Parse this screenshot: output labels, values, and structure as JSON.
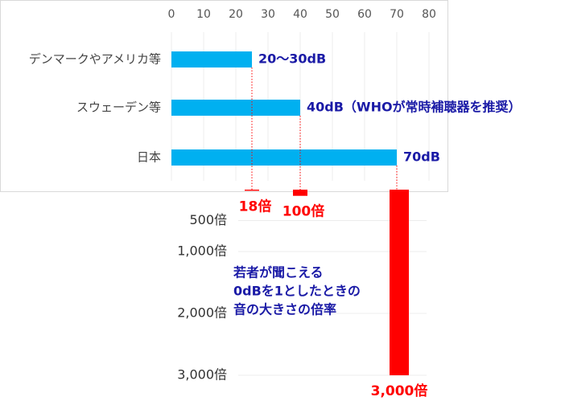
{
  "chart_data": [
    {
      "type": "bar",
      "orientation": "horizontal",
      "categories": [
        "デンマークやアメリカ等",
        "スウェーデン等",
        "日本"
      ],
      "values": [
        25,
        40,
        70
      ],
      "value_labels": [
        "20～30dB",
        "40dB（WHOが常時補聴器を推奨）",
        "70dB"
      ],
      "color": "#00b0f0",
      "label_color": "#1a1aa6",
      "xlim": [
        0,
        80
      ],
      "xticks": [
        0,
        10,
        20,
        30,
        40,
        50,
        60,
        70,
        80
      ],
      "grid": true
    },
    {
      "type": "bar",
      "orientation": "downward",
      "values": [
        18,
        100,
        3000
      ],
      "value_labels": [
        "18倍",
        "100倍",
        "3,000倍"
      ],
      "color": "#ff0000",
      "ylim": [
        0,
        3000
      ],
      "yticks": [
        {
          "value": 500,
          "label": "500倍"
        },
        {
          "value": 1000,
          "label": "1,000倍"
        },
        {
          "value": 2000,
          "label": "2,000倍"
        },
        {
          "value": 3000,
          "label": "3,000倍"
        }
      ],
      "grid": true,
      "annotation": [
        "若者が聞こえる",
        "0dBを1としたときの",
        "音の大きさの倍率"
      ]
    }
  ]
}
